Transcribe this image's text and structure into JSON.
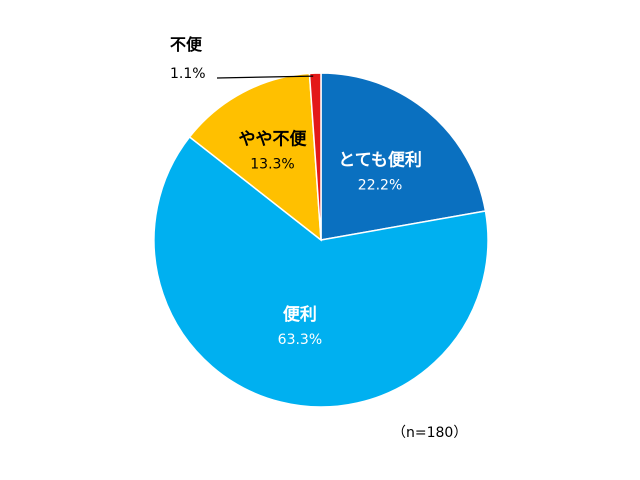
{
  "chart_data": {
    "type": "pie",
    "start": "12 o'clock",
    "direction": "clockwise",
    "slices": [
      {
        "name": "とても便利",
        "value": 22.2,
        "label": "22.2%",
        "color": "#0a70c0",
        "text_color": "#ffffff"
      },
      {
        "name": "便利",
        "value": 63.3,
        "label": "63.3%",
        "color": "#00b0f0",
        "text_color": "#ffffff"
      },
      {
        "name": "やや不便",
        "value": 13.3,
        "label": "13.3%",
        "color": "#ffc000",
        "text_color": "#000000"
      },
      {
        "name": "不便",
        "value": 1.1,
        "label": "1.1%",
        "color": "#e31919",
        "text_color": "#000000"
      }
    ],
    "note": "（n=180）"
  }
}
